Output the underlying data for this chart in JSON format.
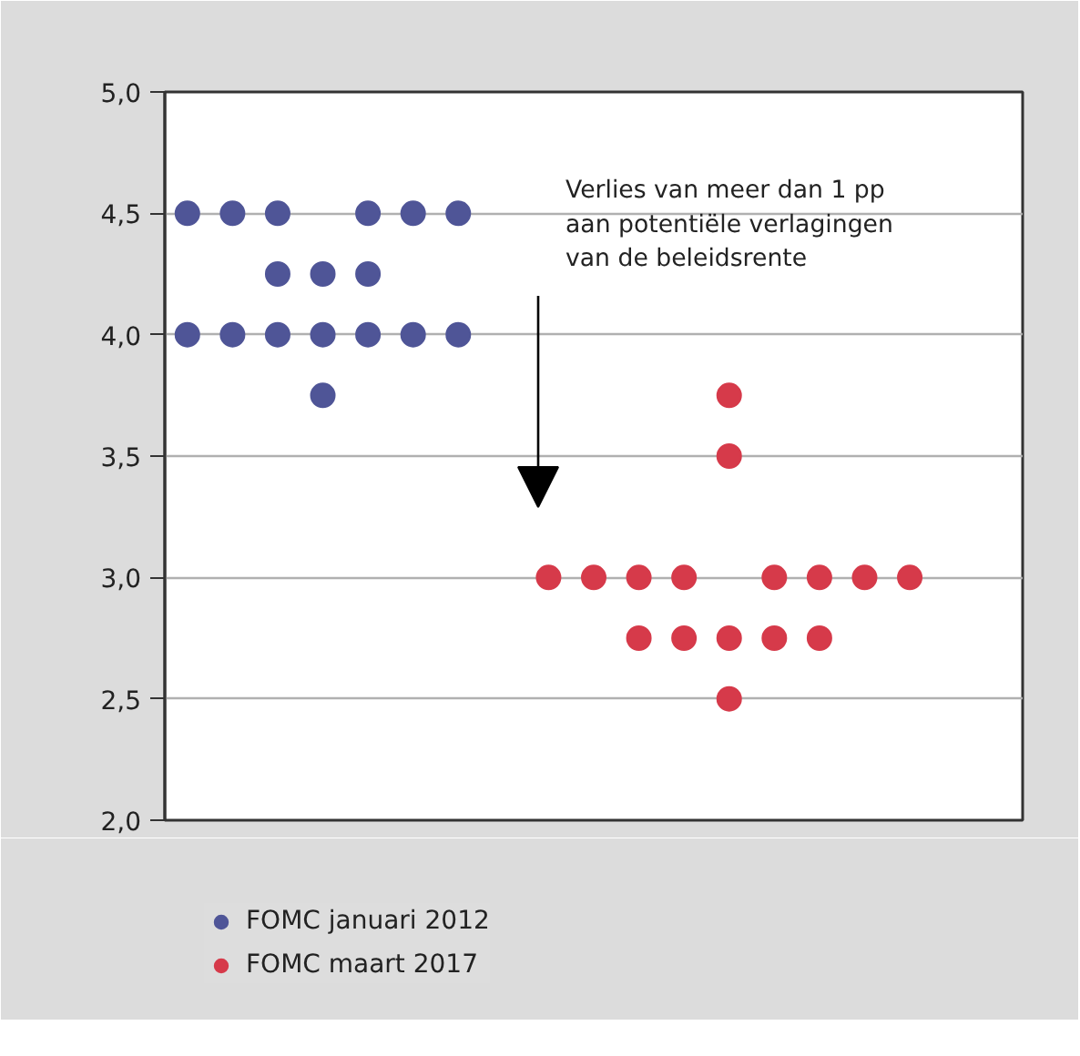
{
  "chart_data": {
    "type": "scatter",
    "marker": "circle",
    "grid": "y",
    "legend": "bottom left",
    "categories": [
      null,
      null,
      null,
      null,
      null,
      null,
      null,
      null,
      null,
      null,
      null,
      null,
      null,
      null,
      null,
      null,
      null,
      null,
      null
    ],
    "ylim": [
      2.0,
      5.0
    ],
    "yticks": [
      {
        "value": 2.0,
        "label": "2,0"
      },
      {
        "value": 2.5,
        "label": "2,5"
      },
      {
        "value": 3.0,
        "label": "3,0"
      },
      {
        "value": 3.5,
        "label": "3,5"
      },
      {
        "value": 4.0,
        "label": "4,0"
      },
      {
        "value": 4.5,
        "label": "4,5"
      },
      {
        "value": 5.0,
        "label": "5,0"
      }
    ],
    "series": [
      {
        "name": "FOMC januari 2012",
        "color": "#4f5597",
        "values": [
          4.5,
          4.5,
          4.5,
          null,
          4.5,
          4.5,
          4.5,
          null,
          null,
          null,
          null,
          null,
          null,
          null,
          null,
          null,
          null,
          null,
          null
        ]
      },
      {
        "color": "#4f5597",
        "values": [
          null,
          null,
          4.25,
          4.25,
          4.25,
          null,
          null,
          null,
          null,
          null,
          null,
          null,
          null,
          null,
          null,
          null,
          null,
          null,
          null
        ]
      },
      {
        "color": "#4f5597",
        "values": [
          4.0,
          4.0,
          4.0,
          4.0,
          4.0,
          4.0,
          4.0,
          null,
          null,
          null,
          null,
          null,
          null,
          null,
          null,
          null,
          null,
          null,
          null
        ]
      },
      {
        "color": "#4f5597",
        "values": [
          null,
          null,
          null,
          3.75,
          null,
          null,
          null,
          null,
          null,
          null,
          null,
          null,
          null,
          null,
          null,
          null,
          null,
          null,
          null
        ]
      },
      {
        "name": "FOMC maart 2017",
        "color": "#d63a4a",
        "values": [
          null,
          null,
          null,
          null,
          null,
          null,
          null,
          null,
          3.0,
          3.0,
          3.0,
          3.0,
          null,
          3.0,
          3.0,
          3.0,
          3.0,
          null,
          null
        ]
      },
      {
        "color": "#d63a4a",
        "values": [
          null,
          null,
          null,
          null,
          null,
          null,
          null,
          null,
          null,
          null,
          null,
          null,
          3.75,
          null,
          null,
          null,
          null,
          null,
          null
        ]
      },
      {
        "color": "#d63a4a",
        "values": [
          null,
          null,
          null,
          null,
          null,
          null,
          null,
          null,
          null,
          null,
          null,
          null,
          3.5,
          null,
          null,
          null,
          null,
          null,
          null
        ]
      },
      {
        "color": "#d63a4a",
        "values": [
          null,
          null,
          null,
          null,
          null,
          null,
          null,
          null,
          null,
          null,
          2.75,
          2.75,
          2.75,
          2.75,
          2.75,
          null,
          null,
          null,
          null
        ]
      },
      {
        "color": "#d63a4a",
        "values": [
          null,
          null,
          null,
          null,
          null,
          null,
          null,
          null,
          null,
          null,
          null,
          null,
          2.5,
          null,
          null,
          null,
          null,
          null,
          null
        ]
      }
    ],
    "annotations": [
      "Verlies van meer dan 1 pp\naan potentiële verlagingen\nvan de beleidsrente"
    ]
  }
}
